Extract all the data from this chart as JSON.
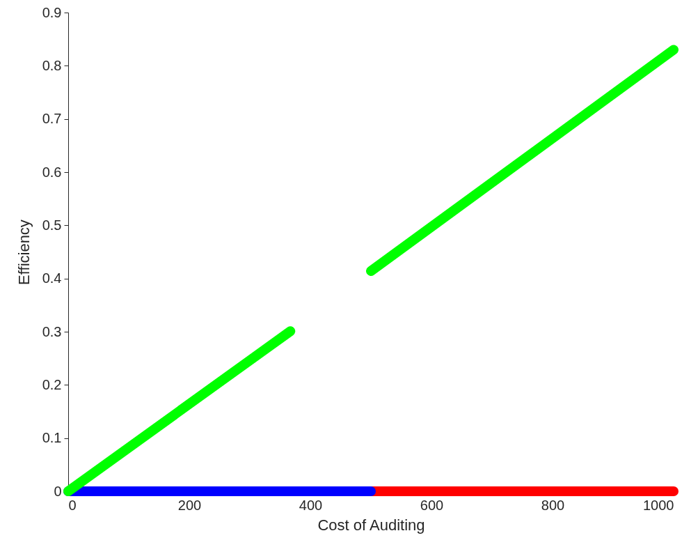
{
  "chart_data": {
    "type": "line",
    "xlabel": "Cost of Auditing",
    "ylabel": "Efficiency",
    "xlim": [
      0,
      1000
    ],
    "xticks": [
      0,
      200,
      400,
      600,
      800,
      1000
    ],
    "ylim": [
      0,
      0.9
    ],
    "yticks": [
      0,
      0.1,
      0.2,
      0.3,
      0.4,
      0.5,
      0.6,
      0.7,
      0.8,
      0.9
    ],
    "grid": false,
    "line_style": "solid",
    "series": [
      {
        "color": "#ff0000",
        "x": [
          500,
          1000
        ],
        "values": [
          0,
          0
        ]
      },
      {
        "color": "#0000ff",
        "x": [
          0,
          500
        ],
        "values": [
          0,
          0
        ]
      },
      {
        "color": "#00ff00",
        "x": [
          0,
          367
        ],
        "values": [
          0,
          0.301
        ]
      },
      {
        "color": "#00ff00",
        "x": [
          500,
          1000
        ],
        "values": [
          0.414,
          0.83
        ]
      }
    ]
  }
}
